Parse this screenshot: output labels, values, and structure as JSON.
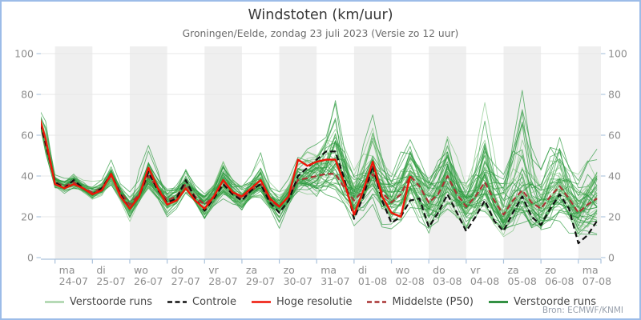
{
  "header": {
    "title": "Windstoten (km/uur)",
    "subtitle": "Groningen/Eelde, zondag 23 juli 2023 (Versie zo 12 uur)"
  },
  "source": "Bron: ECMWF/KNMI",
  "colors": {
    "frame_border": "#9cbce8",
    "band_gray": "#efefef",
    "gridline": "#e7e7e7",
    "axis": "#aac2dc",
    "tick_label": "#8d8d8d",
    "ensemble_green": "#2c9a3e",
    "ensemble_green_light": "#79c27b",
    "control_black": "#111111",
    "hres_red": "#ee1507",
    "p50_darkred": "#a83434"
  },
  "legend": [
    {
      "label": "Verstoorde runs",
      "color": "#a9d3a9",
      "dash": "none"
    },
    {
      "label": "Controle",
      "color": "#111111",
      "dash": "dashed"
    },
    {
      "label": "Hoge resolutie",
      "color": "#ee1507",
      "dash": "none"
    },
    {
      "label": "Middelste (P50)",
      "color": "#a83434",
      "dash": "dashed"
    },
    {
      "label": "Verstoorde runs",
      "color": "#0e7d22",
      "dash": "none"
    }
  ],
  "chart_data": {
    "type": "line",
    "title": "Windstoten (km/uur)",
    "subtitle": "Groningen/Eelde, zondag 23 juli 2023 (Versie zo 12 uur)",
    "ylabel": "",
    "xlabel": "",
    "ylim": [
      0,
      100
    ],
    "y_ticks": [
      0,
      20,
      40,
      60,
      80,
      100
    ],
    "time_step_hours": 6,
    "n_points": 61,
    "start_label": "zo 23-07 12:00",
    "x_days": [
      {
        "day": "ma",
        "date": "24-07"
      },
      {
        "day": "di",
        "date": "25-07"
      },
      {
        "day": "wo",
        "date": "26-07"
      },
      {
        "day": "do",
        "date": "27-07"
      },
      {
        "day": "vr",
        "date": "28-07"
      },
      {
        "day": "za",
        "date": "29-07"
      },
      {
        "day": "zo",
        "date": "30-07"
      },
      {
        "day": "ma",
        "date": "31-07"
      },
      {
        "day": "di",
        "date": "01-08"
      },
      {
        "day": "wo",
        "date": "02-08"
      },
      {
        "day": "do",
        "date": "03-08"
      },
      {
        "day": "vr",
        "date": "04-08"
      },
      {
        "day": "za",
        "date": "05-08"
      },
      {
        "day": "zo",
        "date": "06-08"
      },
      {
        "day": "ma",
        "date": "07-08"
      }
    ],
    "series": [
      {
        "name": "Controle",
        "style": "black-dashed",
        "values": [
          74,
          56,
          37,
          34,
          38,
          34,
          31,
          34,
          41,
          31,
          24,
          30,
          42,
          33,
          27,
          29,
          38,
          29,
          23,
          29,
          36,
          31,
          28,
          33,
          36,
          27,
          22,
          28,
          40,
          44,
          48,
          52,
          52,
          38,
          19,
          30,
          45,
          28,
          17,
          20,
          28,
          29,
          15,
          22,
          31,
          22,
          13,
          20,
          28,
          18,
          13,
          22,
          30,
          20,
          16,
          24,
          31,
          24,
          7,
          11,
          18
        ]
      },
      {
        "name": "Middelste (P50)",
        "style": "darkred-dashed",
        "values": [
          74,
          55,
          37,
          35,
          37,
          34,
          32,
          34,
          40,
          32,
          26,
          31,
          40,
          34,
          28,
          30,
          36,
          30,
          26,
          30,
          36,
          31,
          29,
          33,
          36,
          28,
          25,
          30,
          38,
          39,
          40,
          41,
          41,
          34,
          28,
          33,
          41,
          32,
          27,
          31,
          40,
          35,
          27,
          31,
          40,
          31,
          25,
          30,
          37,
          28,
          21,
          28,
          33,
          27,
          24,
          30,
          35,
          29,
          22,
          26,
          29
        ]
      },
      {
        "name": "Hoge resolutie",
        "style": "red-solid",
        "values": [
          74,
          58,
          36,
          34,
          36,
          34,
          31,
          33,
          41,
          30,
          24,
          30,
          44,
          34,
          26,
          28,
          34,
          28,
          24,
          30,
          38,
          32,
          30,
          34,
          38,
          29,
          25,
          30,
          48,
          45,
          47,
          48,
          48,
          36,
          21,
          33,
          47,
          30,
          22,
          20,
          40
        ]
      }
    ],
    "ensemble": {
      "name": "Verstoorde runs",
      "count": 50,
      "seed": 7,
      "envelope_low": [
        70,
        48,
        33,
        30,
        32,
        30,
        26,
        29,
        33,
        27,
        17,
        26,
        32,
        28,
        20,
        24,
        28,
        24,
        16,
        24,
        28,
        26,
        20,
        27,
        27,
        22,
        13,
        23,
        28,
        28,
        25,
        26,
        28,
        22,
        12,
        15,
        25,
        15,
        10,
        14,
        18,
        13,
        8,
        12,
        18,
        12,
        8,
        12,
        15,
        12,
        8,
        12,
        15,
        10,
        8,
        12,
        15,
        12,
        6,
        8,
        10
      ],
      "envelope_high": [
        76,
        74,
        42,
        40,
        44,
        40,
        38,
        40,
        50,
        38,
        33,
        38,
        55,
        42,
        36,
        38,
        48,
        38,
        34,
        38,
        50,
        40,
        38,
        42,
        52,
        38,
        34,
        40,
        55,
        58,
        60,
        65,
        77,
        60,
        45,
        55,
        72,
        55,
        45,
        58,
        62,
        50,
        45,
        52,
        65,
        52,
        44,
        55,
        76,
        55,
        48,
        60,
        82,
        55,
        45,
        58,
        68,
        52,
        45,
        50,
        57
      ],
      "spikes": [
        {
          "member": 7,
          "t": 32,
          "value": 77
        },
        {
          "member": 13,
          "t": 36,
          "value": 70
        },
        {
          "member": 21,
          "t": 48,
          "value": 76
        },
        {
          "member": 29,
          "t": 52,
          "value": 82
        },
        {
          "member": 35,
          "t": 12,
          "value": 55
        }
      ]
    }
  }
}
